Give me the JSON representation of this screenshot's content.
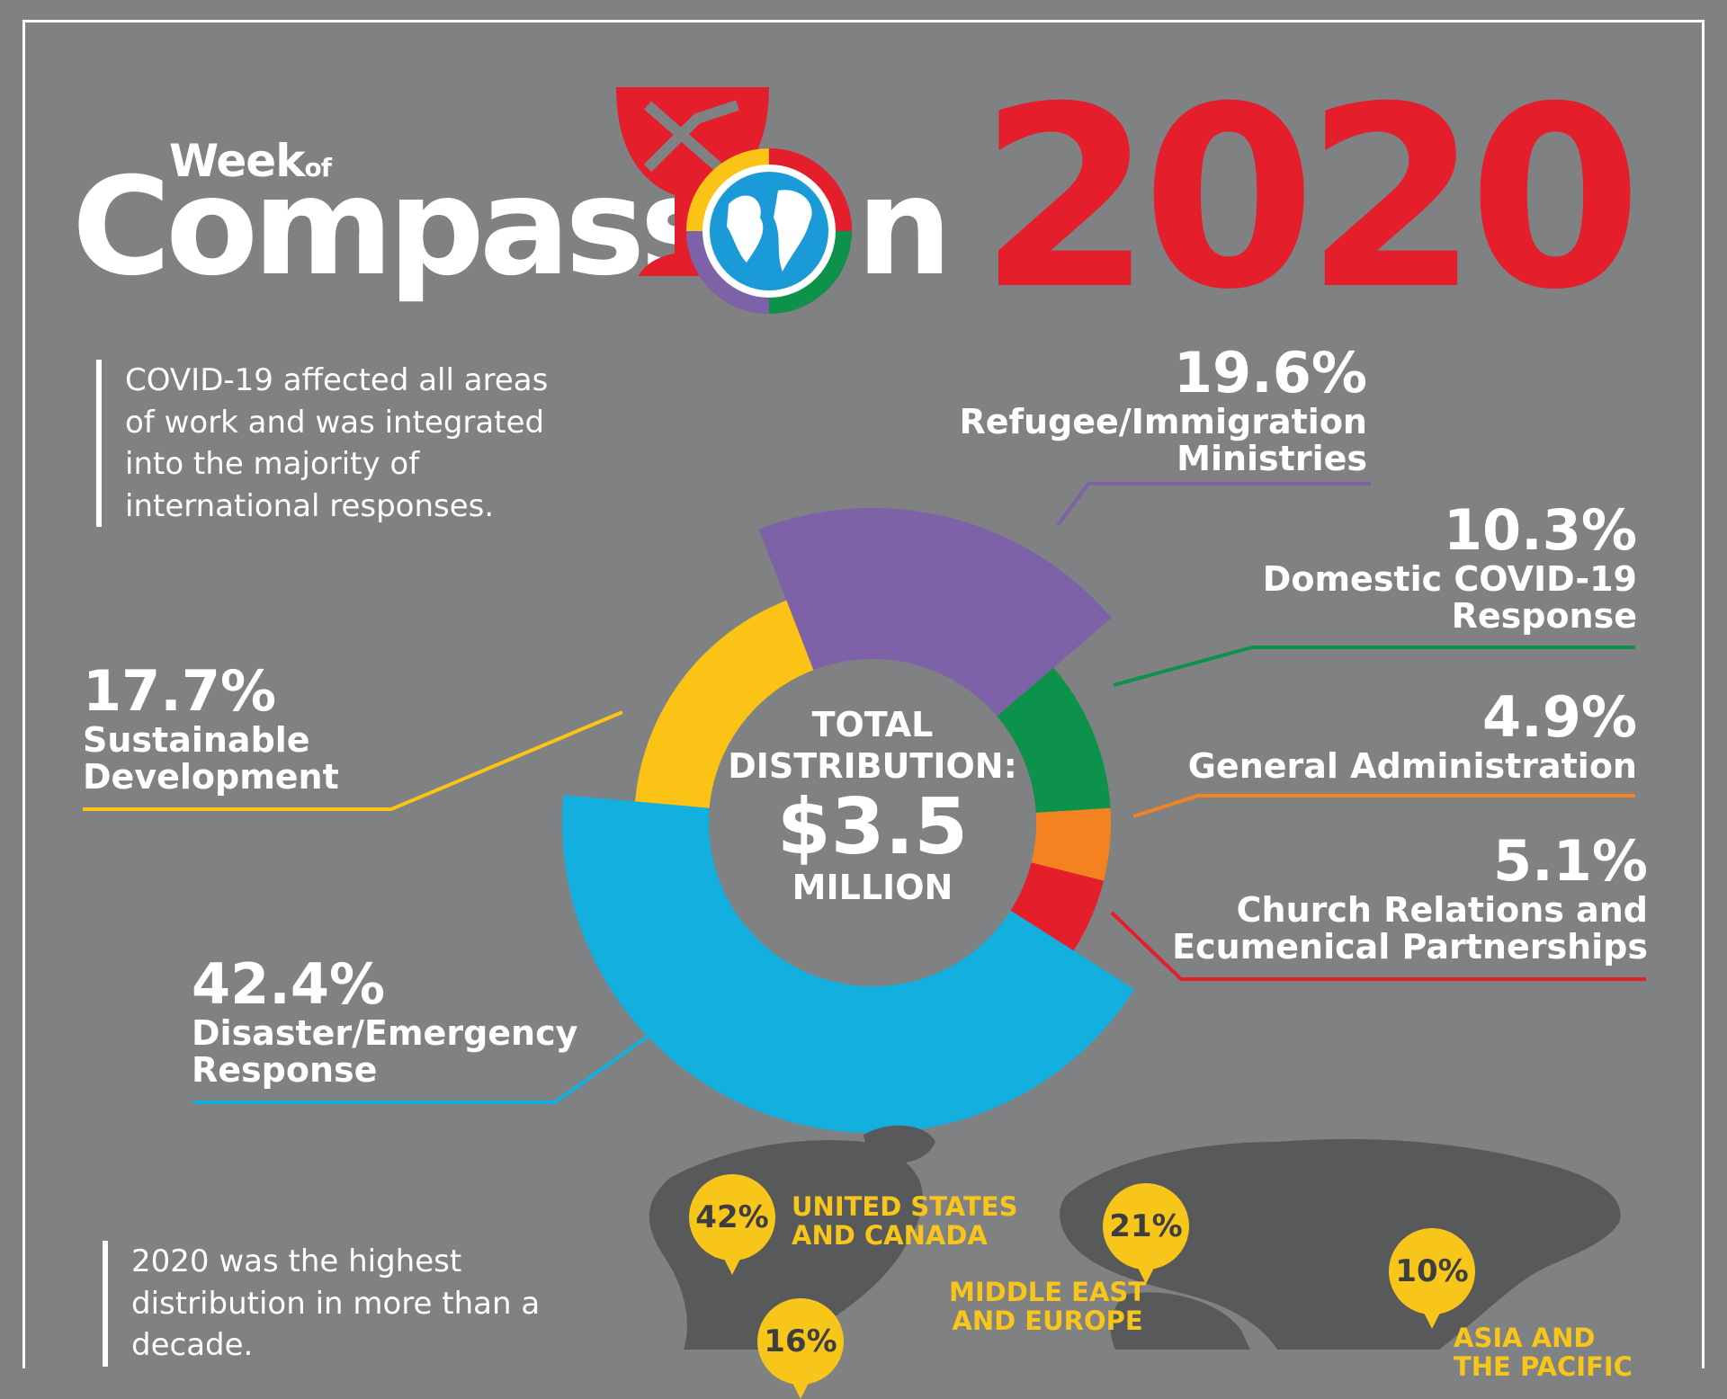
{
  "header": {
    "logo_week": "Week",
    "logo_of": "of",
    "logo_compass": "Compass",
    "logo_n": "n",
    "year": "2020"
  },
  "notes": {
    "covid": "COVID-19 affected all areas of work and was integrated into the majority of international responses.",
    "highest": "2020 was the highest distribution in more than a decade."
  },
  "center": {
    "line1": "TOTAL",
    "line2": "DISTRIBUTION:",
    "amount": "$3.5",
    "unit": "MILLION"
  },
  "labels": {
    "refugee_pct": "19.6%",
    "refugee_name1": "Refugee/Immigration",
    "refugee_name2": "Ministries",
    "domestic_pct": "10.3%",
    "domestic_name1": "Domestic COVID-19",
    "domestic_name2": "Response",
    "admin_pct": "4.9%",
    "admin_name1": "General Administration",
    "church_pct": "5.1%",
    "church_name1": "Church Relations and",
    "church_name2": "Ecumenical Partnerships",
    "sustain_pct": "17.7%",
    "sustain_name1": "Sustainable",
    "sustain_name2": "Development",
    "disaster_pct": "42.4%",
    "disaster_name1": "Disaster/Emergency",
    "disaster_name2": "Response"
  },
  "chart_data": {
    "type": "pie",
    "categories": [
      "Refugee/Immigration Ministries",
      "Domestic COVID-19 Response",
      "General Administration",
      "Church Relations and Ecumenical Partnerships",
      "Disaster/Emergency Response",
      "Sustainable Development"
    ],
    "values": [
      19.6,
      10.3,
      4.9,
      5.1,
      42.4,
      17.7
    ],
    "colors": [
      "#7d62a8",
      "#0c924a",
      "#f58220",
      "#e41e2b",
      "#12afdf",
      "#fbc316"
    ],
    "total": "$3.5 MILLION"
  },
  "map": {
    "regions": [
      {
        "pct": "42%",
        "name1": "UNITED STATES",
        "name2": "AND CANADA"
      },
      {
        "pct": "21%",
        "name1": "MIDDLE EAST",
        "name2": "AND EUROPE"
      },
      {
        "pct": "10%",
        "name1": "ASIA AND",
        "name2": "THE PACIFIC"
      },
      {
        "pct": "16%",
        "name1": "",
        "name2": ""
      }
    ]
  }
}
